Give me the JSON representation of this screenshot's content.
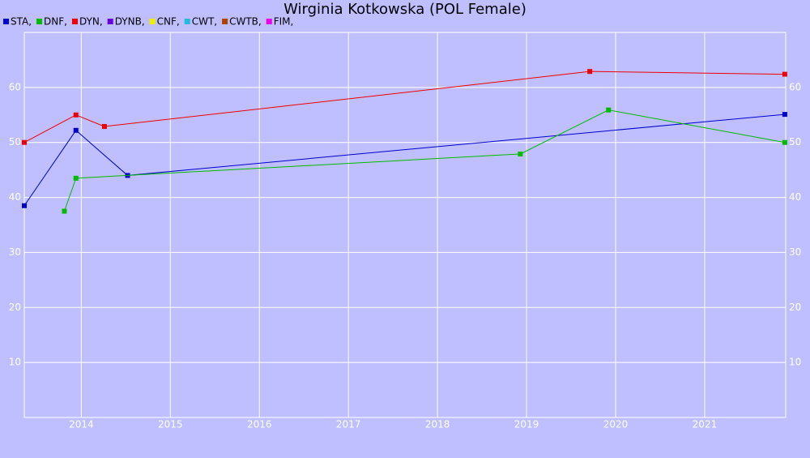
{
  "chart_data": {
    "type": "line",
    "title": "Wirginia Kotkowska (POL Female)",
    "xlim": [
      2013.36,
      2021.91
    ],
    "xticks": [
      2014,
      2015,
      2016,
      2017,
      2018,
      2019,
      2020,
      2021
    ],
    "ylim": [
      0,
      70
    ],
    "yticks": [
      10,
      20,
      30,
      40,
      50,
      60
    ],
    "grid": true,
    "series": [
      {
        "name": "STA,",
        "color": "#0000cc",
        "x": [
          2013.36,
          2013.94,
          2014.52,
          2021.9
        ],
        "values": [
          38.5,
          52.2,
          44.0,
          55.1
        ]
      },
      {
        "name": "DNF,",
        "color": "#00bb00",
        "x": [
          2013.81,
          2013.94,
          2018.93,
          2019.92,
          2021.9
        ],
        "values": [
          37.5,
          43.5,
          47.9,
          55.9,
          50.0
        ]
      },
      {
        "name": "DYN,",
        "color": "#ee0000",
        "x": [
          2013.36,
          2013.94,
          2014.26,
          2019.71,
          2021.9
        ],
        "values": [
          50.0,
          55.0,
          52.9,
          62.9,
          62.4
        ]
      },
      {
        "name": "DYNB,",
        "color": "#6600dd",
        "x": [],
        "values": []
      },
      {
        "name": "CNF,",
        "color": "#eeee00",
        "x": [],
        "values": []
      },
      {
        "name": "CWT,",
        "color": "#22bbdd",
        "x": [],
        "values": []
      },
      {
        "name": "CWTB,",
        "color": "#aa4400",
        "x": [],
        "values": []
      },
      {
        "name": "FIM,",
        "color": "#ee00ee",
        "x": [],
        "values": []
      }
    ]
  }
}
